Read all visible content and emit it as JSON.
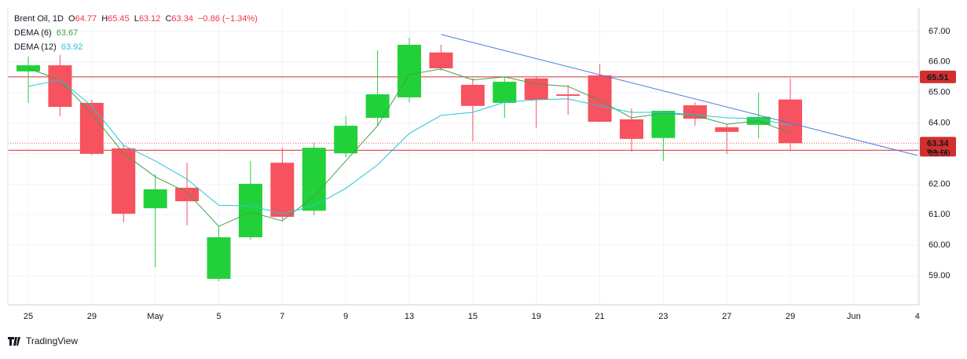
{
  "chart_data": {
    "type": "candlestick",
    "title": "Brent Oil, 1D",
    "ohlc_labels": [
      "O",
      "H",
      "L",
      "C"
    ],
    "change": "−0.86 (−1.34%)",
    "categories": [
      "25",
      null,
      "29",
      null,
      "May",
      null,
      "5",
      null,
      "7",
      null,
      "9",
      null,
      "13",
      null,
      "15",
      null,
      "19",
      null,
      "21",
      null,
      "23",
      null,
      "27",
      null,
      "29",
      null,
      "Jun",
      null,
      "4"
    ],
    "open": [
      65.69,
      65.89,
      64.66,
      63.17,
      61.21,
      61.88,
      58.9,
      60.26,
      62.7,
      61.13,
      63.01,
      64.17,
      64.84,
      66.31,
      65.25,
      64.66,
      65.46,
      64.94,
      65.56,
      64.12,
      63.51,
      64.58,
      63.86,
      63.94,
      64.77,
      null,
      null,
      null,
      null
    ],
    "high": [
      66.18,
      66.23,
      64.76,
      63.3,
      62.32,
      62.7,
      60.62,
      62.76,
      63.19,
      63.35,
      64.22,
      66.38,
      66.79,
      66.56,
      65.46,
      65.53,
      65.51,
      65.25,
      65.92,
      64.48,
      64.4,
      64.68,
      63.96,
      65.0,
      65.45,
      null,
      null,
      null,
      null
    ],
    "low": [
      64.66,
      64.22,
      62.94,
      60.75,
      59.28,
      60.65,
      58.82,
      60.18,
      60.83,
      60.98,
      62.88,
      63.91,
      64.68,
      65.71,
      63.4,
      64.17,
      63.84,
      64.27,
      64.04,
      63.06,
      62.76,
      63.91,
      62.99,
      63.5,
      63.12,
      null,
      null,
      null,
      null
    ],
    "close": [
      65.89,
      64.53,
      62.99,
      61.03,
      61.83,
      61.44,
      60.26,
      62.01,
      60.93,
      63.19,
      63.91,
      64.94,
      66.56,
      65.79,
      64.56,
      65.35,
      64.76,
      64.89,
      64.04,
      63.48,
      64.4,
      64.14,
      63.71,
      64.2,
      63.34,
      null,
      null,
      null,
      null
    ],
    "up_color": "#22d13a",
    "down_color": "#f7525f",
    "series": [
      {
        "name": "DEMA (6)",
        "color": "#43a047",
        "values": [
          65.79,
          65.41,
          64.3,
          63.01,
          62.24,
          61.73,
          60.62,
          61.08,
          60.8,
          61.6,
          62.76,
          63.91,
          65.59,
          65.77,
          65.41,
          65.51,
          65.28,
          65.2,
          64.74,
          64.17,
          64.32,
          64.25,
          63.96,
          64.07,
          63.67,
          null,
          null,
          null,
          null
        ]
      },
      {
        "name": "DEMA (12)",
        "color": "#26c6da",
        "values": [
          65.2,
          65.41,
          64.56,
          63.27,
          62.76,
          62.16,
          61.31,
          61.29,
          61.03,
          61.29,
          61.86,
          62.63,
          63.66,
          64.25,
          64.35,
          64.68,
          64.76,
          64.79,
          64.56,
          64.35,
          64.35,
          64.27,
          64.17,
          64.14,
          63.92,
          null,
          null,
          null,
          null
        ]
      }
    ],
    "hlines": [
      65.51,
      63.11
    ],
    "hline_color": "#d32f2f",
    "last_price": 63.34,
    "trendline": {
      "color": "#4a7bd8",
      "values": [
        66.9,
        62.94
      ]
    },
    "ylim": [
      58.05,
      67.77
    ],
    "yticks": [
      {
        "value": 59,
        "label": "59.00"
      },
      {
        "value": 60,
        "label": "60.00"
      },
      {
        "value": 61,
        "label": "61.00"
      },
      {
        "value": 62,
        "label": "62.00"
      },
      {
        "value": 63,
        "label": "63.00"
      },
      {
        "value": 64,
        "label": "64.00"
      },
      {
        "value": 65,
        "label": "65.00"
      },
      {
        "value": 66,
        "label": "66.00"
      },
      {
        "value": 67,
        "label": "67.00"
      }
    ],
    "grid": true,
    "footer": "TradingView"
  }
}
